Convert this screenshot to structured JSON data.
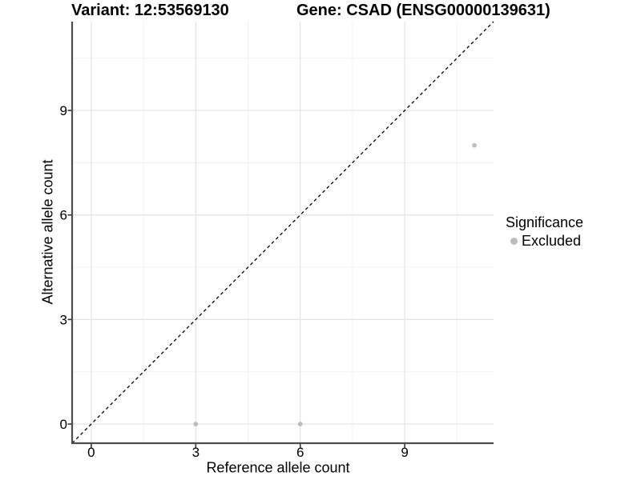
{
  "chart_data": {
    "type": "scatter",
    "title_left": "Variant: 12:53569130",
    "title_right": "Gene: CSAD (ENSG00000139631)",
    "xlabel": "Reference allele count",
    "ylabel": "Alternative allele count",
    "xlim": [
      -0.55,
      11.55
    ],
    "ylim": [
      -0.55,
      11.55
    ],
    "x_ticks": [
      0,
      3,
      6,
      9
    ],
    "y_ticks": [
      0,
      3,
      6,
      9
    ],
    "x_minor_ticks": [
      1.5,
      4.5,
      7.5,
      10.5
    ],
    "y_minor_ticks": [
      1.5,
      4.5,
      7.5,
      10.5
    ],
    "grid": "on",
    "identity_line": {
      "equation": "y = x",
      "style": "dashed",
      "color": "#000000"
    },
    "series": [
      {
        "name": "Excluded",
        "marker_color": "#bdbdbd",
        "points": [
          {
            "x": 3,
            "y": 0
          },
          {
            "x": 6,
            "y": 0
          },
          {
            "x": 11,
            "y": 8
          }
        ]
      }
    ],
    "legend": {
      "title": "Significance",
      "position": "right",
      "items": [
        {
          "label": "Excluded",
          "color": "#bdbdbd"
        }
      ]
    },
    "colors": {
      "background": "#ffffff",
      "grid_major": "#e3e3e3",
      "grid_minor": "#f1f1f1",
      "axis_line": "#4d4d4d",
      "tick_mark": "#333333",
      "text": "#000000"
    }
  }
}
